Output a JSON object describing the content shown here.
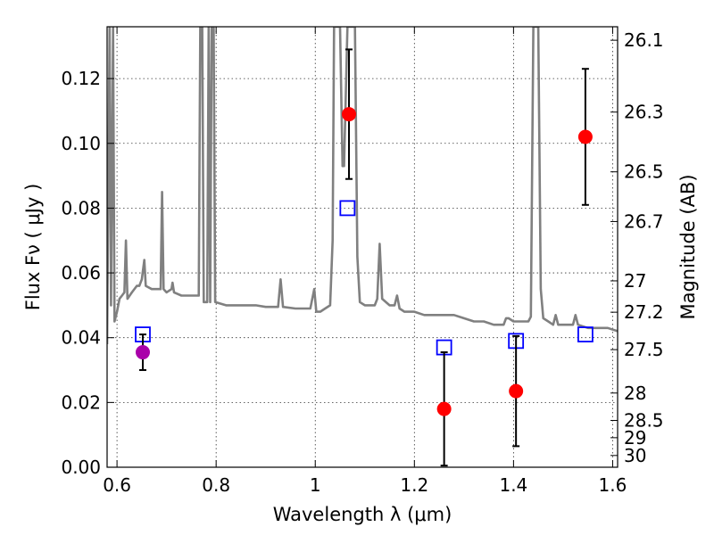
{
  "chart_data": {
    "type": "scatter",
    "xlabel": "Wavelength  λ (μm)",
    "ylabel": "Flux  Fν  ( μJy )",
    "y2label": "Magnitude (AB)",
    "xlim": [
      0.58,
      1.61
    ],
    "ylim": [
      0.0,
      0.136
    ],
    "grid": true,
    "x_ticks": [
      {
        "value": 0.6,
        "label": "0.6"
      },
      {
        "value": 0.8,
        "label": "0.8"
      },
      {
        "value": 1.0,
        "label": "1"
      },
      {
        "value": 1.2,
        "label": "1.2"
      },
      {
        "value": 1.4,
        "label": "1.4"
      },
      {
        "value": 1.6,
        "label": "1.6"
      }
    ],
    "y_ticks": [
      {
        "value": 0.0,
        "label": "0.00"
      },
      {
        "value": 0.02,
        "label": "0.02"
      },
      {
        "value": 0.04,
        "label": "0.04"
      },
      {
        "value": 0.06,
        "label": "0.06"
      },
      {
        "value": 0.08,
        "label": "0.08"
      },
      {
        "value": 0.1,
        "label": "0.10"
      },
      {
        "value": 0.12,
        "label": "0.12"
      }
    ],
    "y2_ticks": [
      {
        "mag": 26.1,
        "label": "26.1"
      },
      {
        "mag": 26.3,
        "label": "26.3"
      },
      {
        "mag": 26.5,
        "label": "26.5"
      },
      {
        "mag": 26.7,
        "label": "26.7"
      },
      {
        "mag": 27.0,
        "label": "27"
      },
      {
        "mag": 27.2,
        "label": "27.2"
      },
      {
        "mag": 27.5,
        "label": "27.5"
      },
      {
        "mag": 28.0,
        "label": "28"
      },
      {
        "mag": 28.5,
        "label": "28.5"
      },
      {
        "mag": 29.0,
        "label": "29"
      },
      {
        "mag": 30.0,
        "label": "30"
      }
    ],
    "series": [
      {
        "kind": "line",
        "color": "#808080",
        "points": [
          [
            0.58,
            0.038
          ],
          [
            0.585,
            0.136
          ],
          [
            0.588,
            0.05
          ],
          [
            0.592,
            0.136
          ],
          [
            0.595,
            0.045
          ],
          [
            0.6,
            0.048
          ],
          [
            0.605,
            0.052
          ],
          [
            0.61,
            0.053
          ],
          [
            0.615,
            0.054
          ],
          [
            0.618,
            0.07
          ],
          [
            0.621,
            0.052
          ],
          [
            0.63,
            0.054
          ],
          [
            0.64,
            0.056
          ],
          [
            0.645,
            0.056
          ],
          [
            0.65,
            0.058
          ],
          [
            0.655,
            0.064
          ],
          [
            0.658,
            0.056
          ],
          [
            0.67,
            0.055
          ],
          [
            0.68,
            0.055
          ],
          [
            0.688,
            0.055
          ],
          [
            0.691,
            0.085
          ],
          [
            0.694,
            0.055
          ],
          [
            0.7,
            0.054
          ],
          [
            0.71,
            0.055
          ],
          [
            0.712,
            0.057
          ],
          [
            0.715,
            0.054
          ],
          [
            0.73,
            0.053
          ],
          [
            0.75,
            0.053
          ],
          [
            0.765,
            0.053
          ],
          [
            0.768,
            0.136
          ],
          [
            0.772,
            0.136
          ],
          [
            0.775,
            0.051
          ],
          [
            0.782,
            0.051
          ],
          [
            0.785,
            0.136
          ],
          [
            0.788,
            0.051
          ],
          [
            0.791,
            0.136
          ],
          [
            0.795,
            0.136
          ],
          [
            0.798,
            0.051
          ],
          [
            0.82,
            0.05
          ],
          [
            0.85,
            0.05
          ],
          [
            0.88,
            0.05
          ],
          [
            0.9,
            0.0495
          ],
          [
            0.925,
            0.0495
          ],
          [
            0.93,
            0.058
          ],
          [
            0.935,
            0.0495
          ],
          [
            0.96,
            0.049
          ],
          [
            0.99,
            0.049
          ],
          [
            0.998,
            0.055
          ],
          [
            1.002,
            0.048
          ],
          [
            1.01,
            0.048
          ],
          [
            1.02,
            0.049
          ],
          [
            1.03,
            0.05
          ],
          [
            1.035,
            0.07
          ],
          [
            1.038,
            0.136
          ],
          [
            1.05,
            0.136
          ],
          [
            1.055,
            0.093
          ],
          [
            1.058,
            0.093
          ],
          [
            1.065,
            0.136
          ],
          [
            1.08,
            0.136
          ],
          [
            1.085,
            0.065
          ],
          [
            1.09,
            0.051
          ],
          [
            1.1,
            0.05
          ],
          [
            1.12,
            0.05
          ],
          [
            1.125,
            0.052
          ],
          [
            1.13,
            0.069
          ],
          [
            1.135,
            0.052
          ],
          [
            1.15,
            0.05
          ],
          [
            1.16,
            0.05
          ],
          [
            1.165,
            0.053
          ],
          [
            1.17,
            0.049
          ],
          [
            1.18,
            0.048
          ],
          [
            1.2,
            0.048
          ],
          [
            1.22,
            0.047
          ],
          [
            1.24,
            0.047
          ],
          [
            1.26,
            0.047
          ],
          [
            1.28,
            0.047
          ],
          [
            1.3,
            0.046
          ],
          [
            1.32,
            0.045
          ],
          [
            1.34,
            0.045
          ],
          [
            1.36,
            0.044
          ],
          [
            1.38,
            0.044
          ],
          [
            1.385,
            0.046
          ],
          [
            1.39,
            0.046
          ],
          [
            1.4,
            0.045
          ],
          [
            1.42,
            0.045
          ],
          [
            1.43,
            0.045
          ],
          [
            1.435,
            0.0465
          ],
          [
            1.44,
            0.136
          ],
          [
            1.45,
            0.136
          ],
          [
            1.455,
            0.055
          ],
          [
            1.46,
            0.046
          ],
          [
            1.47,
            0.045
          ],
          [
            1.48,
            0.044
          ],
          [
            1.485,
            0.047
          ],
          [
            1.49,
            0.044
          ],
          [
            1.5,
            0.044
          ],
          [
            1.52,
            0.044
          ],
          [
            1.525,
            0.047
          ],
          [
            1.53,
            0.044
          ],
          [
            1.55,
            0.043
          ],
          [
            1.57,
            0.043
          ],
          [
            1.59,
            0.043
          ],
          [
            1.61,
            0.042
          ]
        ]
      },
      {
        "kind": "scatter",
        "marker": "square-open",
        "color": "#0000ff",
        "points": [
          [
            0.652,
            0.041
          ],
          [
            1.065,
            0.08
          ],
          [
            1.26,
            0.037
          ],
          [
            1.405,
            0.039
          ],
          [
            1.545,
            0.041
          ]
        ]
      },
      {
        "kind": "scatter",
        "marker": "circle",
        "color": "#ff0000",
        "points": [
          [
            1.068,
            0.109
          ],
          [
            1.26,
            0.018
          ],
          [
            1.405,
            0.0235
          ],
          [
            1.545,
            0.102
          ]
        ],
        "errors": [
          0.02,
          0.0175,
          0.017,
          0.021
        ]
      },
      {
        "kind": "scatter",
        "marker": "circle",
        "color": "#aa00aa",
        "points": [
          [
            0.652,
            0.0355
          ]
        ],
        "errors": [
          0.0055
        ]
      }
    ]
  }
}
